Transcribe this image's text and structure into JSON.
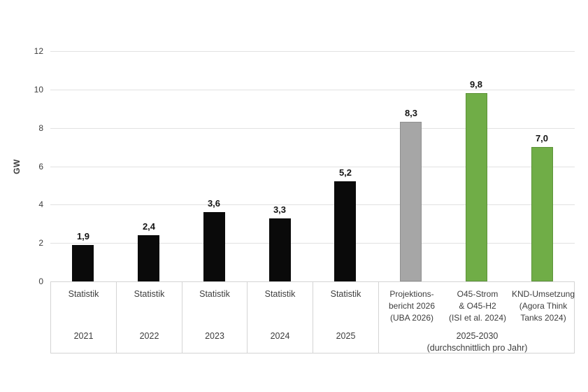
{
  "chart_data": {
    "type": "bar",
    "title": "",
    "xlabel": "",
    "ylabel": "GW",
    "ylim": [
      0,
      12
    ],
    "yticks": [
      "0",
      "2",
      "4",
      "6",
      "8",
      "10",
      "12"
    ],
    "grid": true,
    "legend": "none",
    "decimal_separator": ",",
    "bars": [
      {
        "value": 1.9,
        "label": "1,9",
        "color_key": "black",
        "category": "Statistik",
        "year": "2021"
      },
      {
        "value": 2.4,
        "label": "2,4",
        "color_key": "black",
        "category": "Statistik",
        "year": "2022"
      },
      {
        "value": 3.6,
        "label": "3,6",
        "color_key": "black",
        "category": "Statistik",
        "year": "2023"
      },
      {
        "value": 3.3,
        "label": "3,3",
        "color_key": "black",
        "category": "Statistik",
        "year": "2024"
      },
      {
        "value": 5.2,
        "label": "5,2",
        "color_key": "black",
        "category": "Statistik",
        "year": "2025"
      },
      {
        "value": 8.3,
        "label": "8,3",
        "color_key": "gray",
        "category_lines": [
          "Projektions-",
          "bericht 2026",
          "(UBA 2026)"
        ]
      },
      {
        "value": 9.8,
        "label": "9,8",
        "color_key": "green",
        "category_lines": [
          "O45-Strom",
          "& O45-H2",
          "(ISI et al. 2024)"
        ]
      },
      {
        "value": 7.0,
        "label": "7,0",
        "color_key": "green",
        "category_lines": [
          "KND-Umsetzung",
          "(Agora Think",
          "Tanks 2024)"
        ]
      }
    ],
    "group_caption_lines": [
      "2025-2030",
      "(durchschnittlich pro Jahr)"
    ],
    "colors": {
      "black": "#0a0a0a",
      "gray": "#a6a6a6",
      "green": "#70ad47",
      "gridline": "#e2e2e2",
      "table_border": "#d4d4d4",
      "axis_text": "#3d3d3d",
      "data_label": "#141414"
    },
    "border_colors": {
      "black": "#0a0a0a",
      "gray": "#8f8f8f",
      "green": "#5d9338"
    }
  }
}
